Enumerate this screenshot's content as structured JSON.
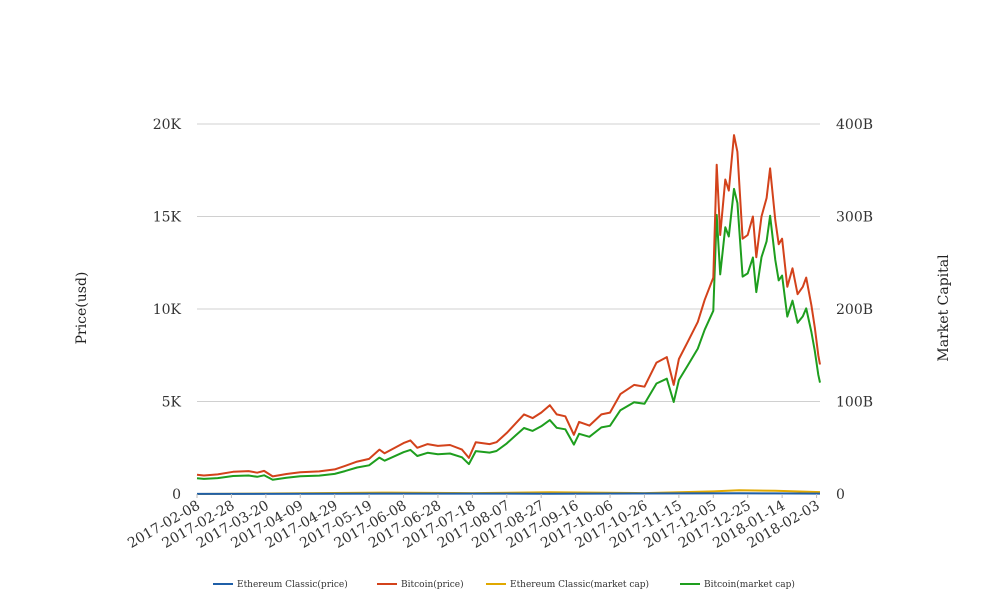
{
  "chart_data": {
    "type": "line",
    "y_left_label": "Price(usd)",
    "y_right_label": "Market Capital",
    "y_left_ticks": [
      "0",
      "5K",
      "10K",
      "15K",
      "20K"
    ],
    "y_left_lim": [
      0,
      20000
    ],
    "y_right_ticks": [
      "0",
      "100B",
      "200B",
      "300B",
      "400B"
    ],
    "y_right_lim": [
      0,
      400000000000
    ],
    "x_ticks": [
      "2017-02-08",
      "2017-02-28",
      "2017-03-20",
      "2017-04-09",
      "2017-04-29",
      "2017-05-19",
      "2017-06-08",
      "2017-06-28",
      "2017-07-18",
      "2017-08-07",
      "2017-08-27",
      "2017-09-16",
      "2017-10-06",
      "2017-10-26",
      "2017-11-15",
      "2017-12-05",
      "2017-12-25",
      "2018-01-14",
      "2018-02-03"
    ],
    "x_start": "2017-02-08",
    "x_end": "2018-02-05",
    "grid": true,
    "legend_position": "bottom",
    "series": [
      {
        "name": "Ethereum Classic(price)",
        "axis": "left",
        "color": "#1f5fa8",
        "points": [
          [
            "2017-02-08",
            3
          ],
          [
            "2017-06-08",
            20
          ],
          [
            "2017-09-01",
            15
          ],
          [
            "2017-12-20",
            40
          ],
          [
            "2018-01-10",
            35
          ],
          [
            "2018-02-05",
            20
          ]
        ]
      },
      {
        "name": "Bitcoin(price)",
        "axis": "left",
        "color": "#d3421b",
        "points": [
          [
            "2017-02-08",
            1040
          ],
          [
            "2017-02-12",
            1000
          ],
          [
            "2017-02-20",
            1060
          ],
          [
            "2017-03-01",
            1200
          ],
          [
            "2017-03-10",
            1240
          ],
          [
            "2017-03-15",
            1150
          ],
          [
            "2017-03-19",
            1250
          ],
          [
            "2017-03-24",
            950
          ],
          [
            "2017-04-01",
            1080
          ],
          [
            "2017-04-09",
            1180
          ],
          [
            "2017-04-20",
            1220
          ],
          [
            "2017-04-29",
            1330
          ],
          [
            "2017-05-05",
            1520
          ],
          [
            "2017-05-12",
            1750
          ],
          [
            "2017-05-19",
            1900
          ],
          [
            "2017-05-25",
            2400
          ],
          [
            "2017-05-28",
            2200
          ],
          [
            "2017-06-03",
            2500
          ],
          [
            "2017-06-08",
            2750
          ],
          [
            "2017-06-12",
            2900
          ],
          [
            "2017-06-16",
            2500
          ],
          [
            "2017-06-22",
            2700
          ],
          [
            "2017-06-28",
            2600
          ],
          [
            "2017-07-05",
            2650
          ],
          [
            "2017-07-12",
            2400
          ],
          [
            "2017-07-16",
            1950
          ],
          [
            "2017-07-20",
            2800
          ],
          [
            "2017-07-28",
            2700
          ],
          [
            "2017-08-01",
            2800
          ],
          [
            "2017-08-07",
            3300
          ],
          [
            "2017-08-12",
            3800
          ],
          [
            "2017-08-17",
            4300
          ],
          [
            "2017-08-22",
            4100
          ],
          [
            "2017-08-27",
            4400
          ],
          [
            "2017-09-01",
            4800
          ],
          [
            "2017-09-05",
            4300
          ],
          [
            "2017-09-10",
            4200
          ],
          [
            "2017-09-15",
            3200
          ],
          [
            "2017-09-18",
            3900
          ],
          [
            "2017-09-24",
            3700
          ],
          [
            "2017-10-01",
            4300
          ],
          [
            "2017-10-06",
            4400
          ],
          [
            "2017-10-12",
            5400
          ],
          [
            "2017-10-20",
            5900
          ],
          [
            "2017-10-26",
            5800
          ],
          [
            "2017-11-02",
            7100
          ],
          [
            "2017-11-08",
            7400
          ],
          [
            "2017-11-12",
            5900
          ],
          [
            "2017-11-15",
            7300
          ],
          [
            "2017-11-20",
            8200
          ],
          [
            "2017-11-26",
            9300
          ],
          [
            "2017-11-30",
            10500
          ],
          [
            "2017-12-05",
            11700
          ],
          [
            "2017-12-07",
            17800
          ],
          [
            "2017-12-09",
            14000
          ],
          [
            "2017-12-12",
            17000
          ],
          [
            "2017-12-14",
            16400
          ],
          [
            "2017-12-17",
            19400
          ],
          [
            "2017-12-19",
            18500
          ],
          [
            "2017-12-22",
            13800
          ],
          [
            "2017-12-25",
            14000
          ],
          [
            "2017-12-28",
            15000
          ],
          [
            "2017-12-30",
            12800
          ],
          [
            "2018-01-02",
            15000
          ],
          [
            "2018-01-05",
            16000
          ],
          [
            "2018-01-07",
            17600
          ],
          [
            "2018-01-10",
            14800
          ],
          [
            "2018-01-12",
            13500
          ],
          [
            "2018-01-14",
            13800
          ],
          [
            "2018-01-17",
            11200
          ],
          [
            "2018-01-20",
            12200
          ],
          [
            "2018-01-23",
            10800
          ],
          [
            "2018-01-26",
            11200
          ],
          [
            "2018-01-28",
            11700
          ],
          [
            "2018-01-31",
            10200
          ],
          [
            "2018-02-02",
            9000
          ],
          [
            "2018-02-04",
            7500
          ],
          [
            "2018-02-05",
            7000
          ]
        ]
      },
      {
        "name": "Ethereum Classic(market cap)",
        "axis": "right",
        "color": "#e0a800",
        "points": [
          [
            "2017-02-08",
            0
          ],
          [
            "2017-06-01",
            1500000000
          ],
          [
            "2017-07-18",
            1000000000
          ],
          [
            "2017-09-01",
            1800000000
          ],
          [
            "2017-10-26",
            1000000000
          ],
          [
            "2017-12-05",
            2800000000
          ],
          [
            "2017-12-20",
            4000000000
          ],
          [
            "2018-01-10",
            3500000000
          ],
          [
            "2018-02-05",
            2000000000
          ]
        ]
      },
      {
        "name": "Bitcoin(market cap)",
        "axis": "right",
        "color": "#1e9e1e",
        "points": [
          [
            "2017-02-08",
            17000000000
          ],
          [
            "2017-02-12",
            16300000000
          ],
          [
            "2017-02-20",
            17200000000
          ],
          [
            "2017-03-01",
            19500000000
          ],
          [
            "2017-03-10",
            20000000000
          ],
          [
            "2017-03-15",
            18600000000
          ],
          [
            "2017-03-19",
            20200000000
          ],
          [
            "2017-03-24",
            15400000000
          ],
          [
            "2017-04-01",
            17500000000
          ],
          [
            "2017-04-09",
            19200000000
          ],
          [
            "2017-04-20",
            19900000000
          ],
          [
            "2017-04-29",
            21700000000
          ],
          [
            "2017-05-05",
            24800000000
          ],
          [
            "2017-05-12",
            28600000000
          ],
          [
            "2017-05-19",
            31000000000
          ],
          [
            "2017-05-25",
            39300000000
          ],
          [
            "2017-05-28",
            36000000000
          ],
          [
            "2017-06-03",
            41000000000
          ],
          [
            "2017-06-08",
            45200000000
          ],
          [
            "2017-06-12",
            47700000000
          ],
          [
            "2017-06-16",
            41100000000
          ],
          [
            "2017-06-22",
            44500000000
          ],
          [
            "2017-06-28",
            42900000000
          ],
          [
            "2017-07-05",
            43800000000
          ],
          [
            "2017-07-12",
            39700000000
          ],
          [
            "2017-07-16",
            32300000000
          ],
          [
            "2017-07-20",
            46400000000
          ],
          [
            "2017-07-28",
            44800000000
          ],
          [
            "2017-08-01",
            46500000000
          ],
          [
            "2017-08-07",
            54700000000
          ],
          [
            "2017-08-12",
            63100000000
          ],
          [
            "2017-08-17",
            71400000000
          ],
          [
            "2017-08-22",
            68200000000
          ],
          [
            "2017-08-27",
            73200000000
          ],
          [
            "2017-09-01",
            79900000000
          ],
          [
            "2017-09-05",
            71600000000
          ],
          [
            "2017-09-10",
            70000000000
          ],
          [
            "2017-09-15",
            53400000000
          ],
          [
            "2017-09-18",
            65100000000
          ],
          [
            "2017-09-24",
            61800000000
          ],
          [
            "2017-10-01",
            72000000000
          ],
          [
            "2017-10-06",
            73700000000
          ],
          [
            "2017-10-12",
            90600000000
          ],
          [
            "2017-10-20",
            99100000000
          ],
          [
            "2017-10-26",
            97500000000
          ],
          [
            "2017-11-02",
            119500000000
          ],
          [
            "2017-11-08",
            124700000000
          ],
          [
            "2017-11-12",
            99500000000
          ],
          [
            "2017-11-15",
            123200000000
          ],
          [
            "2017-11-20",
            138500000000
          ],
          [
            "2017-11-26",
            157200000000
          ],
          [
            "2017-11-30",
            177600000000
          ],
          [
            "2017-12-05",
            198100000000
          ],
          [
            "2017-12-07",
            301700000000
          ],
          [
            "2017-12-09",
            237400000000
          ],
          [
            "2017-12-12",
            288400000000
          ],
          [
            "2017-12-14",
            278400000000
          ],
          [
            "2017-12-17",
            329800000000
          ],
          [
            "2017-12-19",
            314600000000
          ],
          [
            "2017-12-22",
            235000000000
          ],
          [
            "2017-12-25",
            238500000000
          ],
          [
            "2017-12-28",
            255700000000
          ],
          [
            "2017-12-30",
            218300000000
          ],
          [
            "2018-01-02",
            256000000000
          ],
          [
            "2018-01-05",
            273200000000
          ],
          [
            "2018-01-07",
            300800000000
          ],
          [
            "2018-01-10",
            253000000000
          ],
          [
            "2018-01-12",
            230900000000
          ],
          [
            "2018-01-14",
            236100000000
          ],
          [
            "2018-01-17",
            191800000000
          ],
          [
            "2018-01-20",
            209000000000
          ],
          [
            "2018-01-23",
            185100000000
          ],
          [
            "2018-01-26",
            192000000000
          ],
          [
            "2018-01-28",
            200700000000
          ],
          [
            "2018-01-31",
            175100000000
          ],
          [
            "2018-02-02",
            154600000000
          ],
          [
            "2018-02-04",
            128900000000
          ],
          [
            "2018-02-05",
            120400000000
          ]
        ]
      }
    ]
  }
}
